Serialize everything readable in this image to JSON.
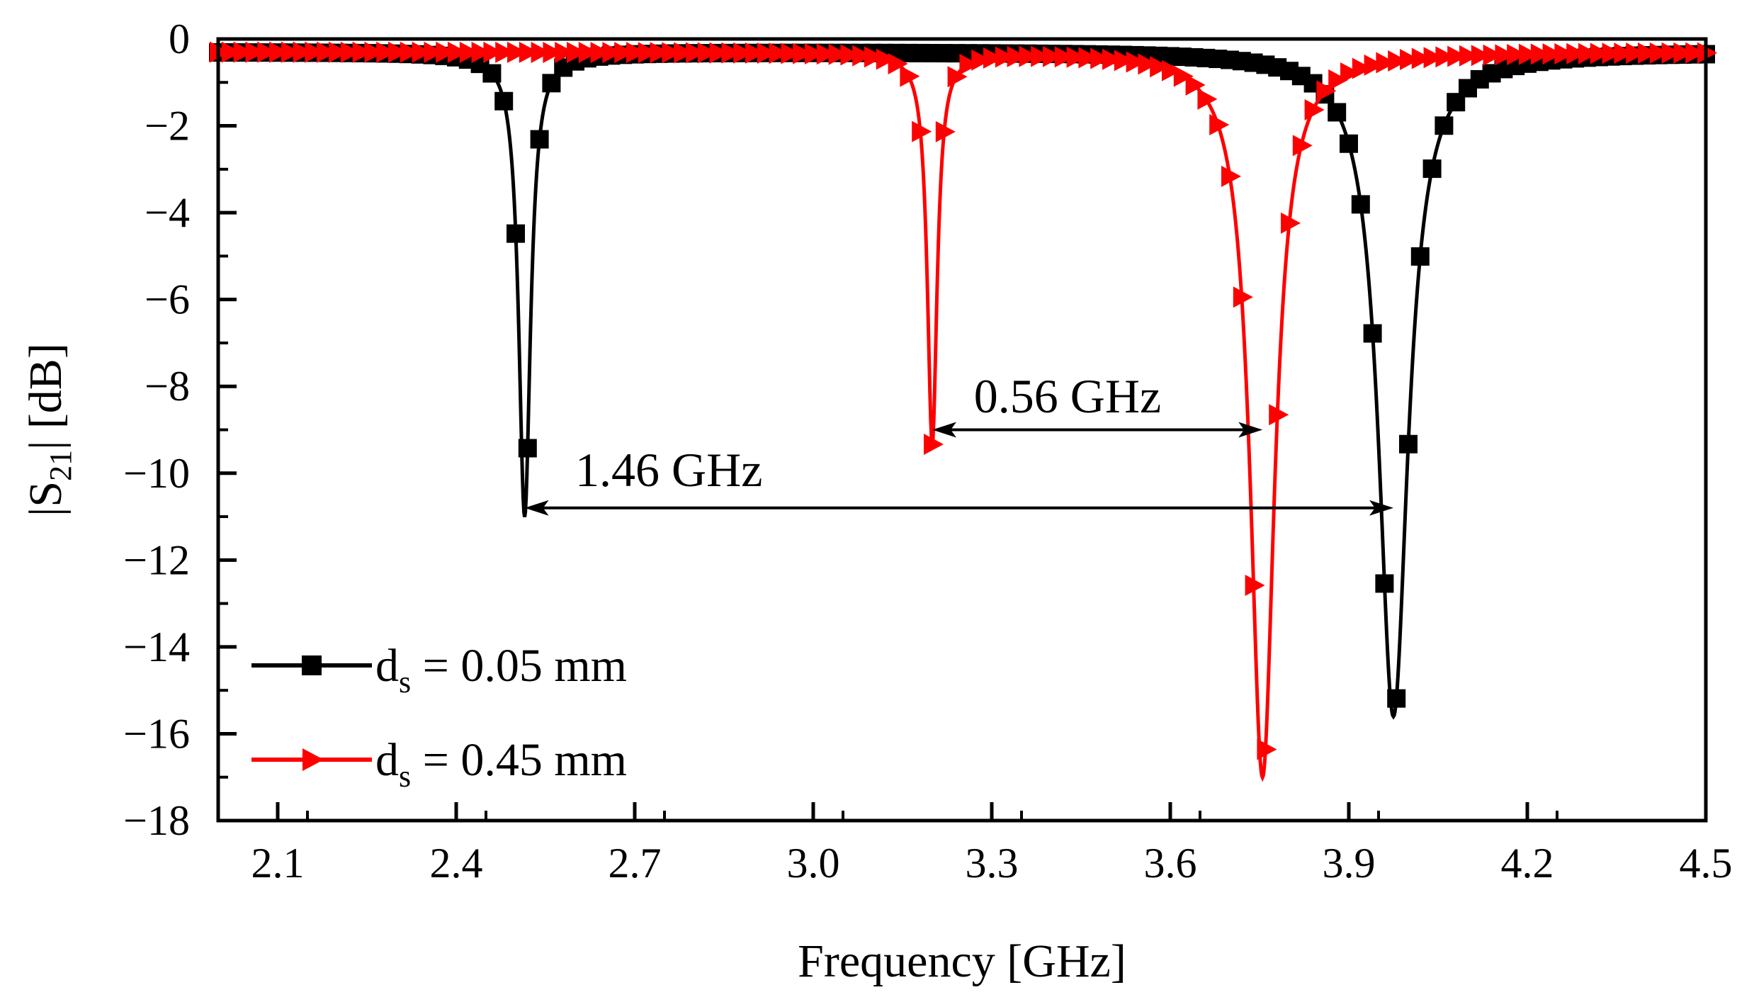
{
  "chart_data": {
    "type": "line",
    "title": "",
    "xlabel": "Frequency [GHz]",
    "ylabel": "|S21| [dB]",
    "ylabel_main": "|S",
    "ylabel_sub": "21",
    "ylabel_rest": "| [dB]",
    "xlim": [
      2.0,
      4.5
    ],
    "ylim": [
      -18,
      0
    ],
    "xticks": [
      2.1,
      2.4,
      2.7,
      3.0,
      3.3,
      3.6,
      3.9,
      4.2,
      4.5
    ],
    "xtick_labels": [
      "2.1",
      "2.4",
      "2.7",
      "3.0",
      "3.3",
      "3.6",
      "3.9",
      "4.2",
      "4.5"
    ],
    "yticks": [
      0,
      -2,
      -4,
      -6,
      -8,
      -10,
      -12,
      -14,
      -16,
      -18
    ],
    "ytick_labels": [
      "0",
      "−2",
      "−4",
      "−6",
      "−8",
      "−10",
      "−12",
      "−14",
      "−16",
      "−18"
    ],
    "legend_position": "bottom-left",
    "series": [
      {
        "name": "ds = 0.05 mm",
        "label_main": "d",
        "label_sub": "s",
        "label_rest": " = 0.05 mm",
        "color": "#000000",
        "marker": "square",
        "resonances": [
          {
            "f0": 2.515,
            "depth": 10.7,
            "halfwidth": 0.012
          },
          {
            "f0": 3.975,
            "depth": 15.3,
            "halfwidth": 0.03
          }
        ]
      },
      {
        "name": "ds = 0.45 mm",
        "label_main": "d",
        "label_sub": "s",
        "label_rest": " = 0.45 mm",
        "color": "#ff0000",
        "marker": "triangle-right",
        "resonances": [
          {
            "f0": 3.2,
            "depth": 9.0,
            "halfwidth": 0.01
          },
          {
            "f0": 3.755,
            "depth": 16.7,
            "halfwidth": 0.025
          }
        ]
      }
    ],
    "annotations": [
      {
        "text": "0.56 GHz",
        "x1": 3.2,
        "x2": 3.755,
        "y": -9.0,
        "text_x": 3.27,
        "text_y": -8.6
      },
      {
        "text": "1.46 GHz",
        "x1": 2.515,
        "x2": 3.975,
        "y": -10.8,
        "text_x": 2.6,
        "text_y": -10.3
      }
    ]
  }
}
